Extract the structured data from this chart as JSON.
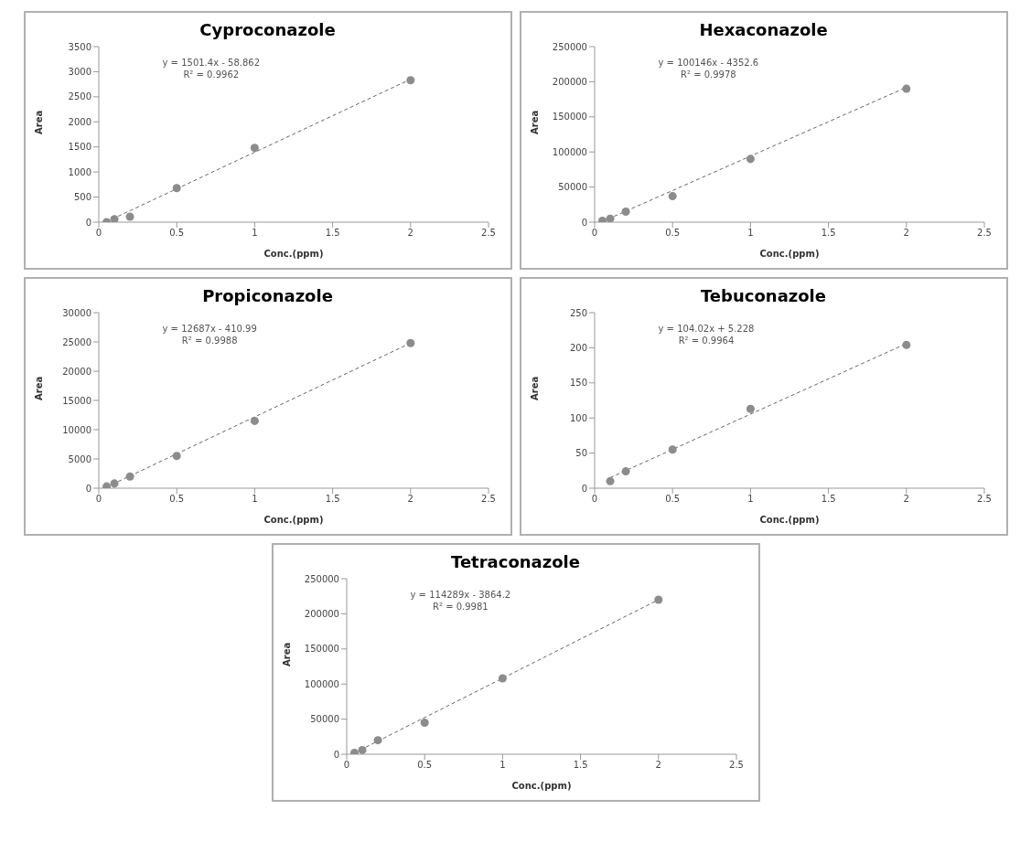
{
  "chart_data": [
    {
      "type": "scatter",
      "title": "Cyproconazole",
      "xlabel": "Conc.(ppm)",
      "ylabel": "Area",
      "xlim": [
        0,
        2.5
      ],
      "xticks": [
        0,
        0.5,
        1,
        1.5,
        2,
        2.5
      ],
      "ylim": [
        0,
        3500
      ],
      "yticks": [
        0,
        500,
        1000,
        1500,
        2000,
        2500,
        3000,
        3500
      ],
      "marker": "circle",
      "annotations": [
        "y = 1501.4x - 58.862",
        "R² = 0.9962"
      ],
      "series": [
        {
          "color": "#8c8c8c",
          "x": [
            0.05,
            0.1,
            0.2,
            0.5,
            1,
            2
          ],
          "values": [
            0,
            60,
            110,
            680,
            1480,
            2830
          ]
        },
        {
          "type": "line",
          "color": "#666666",
          "line_style": "dashed",
          "marker": "none",
          "x": [
            0.05,
            2
          ],
          "values": [
            10,
            2850
          ]
        }
      ]
    },
    {
      "type": "scatter",
      "title": "Hexaconazole",
      "xlabel": "Conc.(ppm)",
      "ylabel": "Area",
      "xlim": [
        0,
        2.5
      ],
      "xticks": [
        0,
        0.5,
        1,
        1.5,
        2,
        2.5
      ],
      "ylim": [
        0,
        250000
      ],
      "yticks": [
        0,
        50000,
        100000,
        150000,
        200000,
        250000
      ],
      "marker": "circle",
      "annotations": [
        "y = 100146x - 4352.6",
        "R² = 0.9978"
      ],
      "series": [
        {
          "color": "#8c8c8c",
          "x": [
            0.05,
            0.1,
            0.2,
            0.5,
            1,
            2
          ],
          "values": [
            2000,
            5000,
            15000,
            37000,
            90000,
            190000
          ]
        },
        {
          "type": "line",
          "color": "#666666",
          "line_style": "dashed",
          "marker": "none",
          "x": [
            0.05,
            2
          ],
          "values": [
            1000,
            192000
          ]
        }
      ]
    },
    {
      "type": "scatter",
      "title": "Propiconazole",
      "xlabel": "Conc.(ppm)",
      "ylabel": "Area",
      "xlim": [
        0,
        2.5
      ],
      "xticks": [
        0,
        0.5,
        1,
        1.5,
        2,
        2.5
      ],
      "ylim": [
        0,
        30000
      ],
      "yticks": [
        0,
        5000,
        10000,
        15000,
        20000,
        25000,
        30000
      ],
      "marker": "circle",
      "annotations": [
        "y = 12687x - 410.99",
        "R² = 0.9988"
      ],
      "series": [
        {
          "color": "#8c8c8c",
          "x": [
            0.05,
            0.1,
            0.2,
            0.5,
            1,
            2
          ],
          "values": [
            300,
            800,
            2000,
            5500,
            11500,
            24800
          ]
        },
        {
          "type": "line",
          "color": "#666666",
          "line_style": "dashed",
          "marker": "none",
          "x": [
            0.05,
            2
          ],
          "values": [
            200,
            24800
          ]
        }
      ]
    },
    {
      "type": "scatter",
      "title": "Tebuconazole",
      "xlabel": "Conc.(ppm)",
      "ylabel": "Area",
      "xlim": [
        0,
        2.5
      ],
      "xticks": [
        0,
        0.5,
        1,
        1.5,
        2,
        2.5
      ],
      "ylim": [
        0,
        250
      ],
      "yticks": [
        0,
        50,
        100,
        150,
        200,
        250
      ],
      "marker": "circle",
      "annotations": [
        "y = 104.02x + 5.228",
        "R² = 0.9964"
      ],
      "series": [
        {
          "color": "#8c8c8c",
          "x": [
            0.1,
            0.2,
            0.5,
            1,
            2
          ],
          "values": [
            10,
            24,
            55,
            113,
            204
          ]
        },
        {
          "type": "line",
          "color": "#666666",
          "line_style": "dashed",
          "marker": "none",
          "x": [
            0.1,
            2
          ],
          "values": [
            15,
            206
          ]
        }
      ]
    },
    {
      "type": "scatter",
      "title": "Tetraconazole",
      "xlabel": "Conc.(ppm)",
      "ylabel": "Area",
      "xlim": [
        0,
        2.5
      ],
      "xticks": [
        0,
        0.5,
        1,
        1.5,
        2,
        2.5
      ],
      "ylim": [
        0,
        250000
      ],
      "yticks": [
        0,
        50000,
        100000,
        150000,
        200000,
        250000
      ],
      "marker": "circle",
      "annotations": [
        "y = 114289x - 3864.2",
        "R² = 0.9981"
      ],
      "series": [
        {
          "color": "#8c8c8c",
          "x": [
            0.05,
            0.1,
            0.2,
            0.5,
            1,
            2
          ],
          "values": [
            2000,
            6000,
            20000,
            45000,
            108000,
            220000
          ]
        },
        {
          "type": "line",
          "color": "#666666",
          "line_style": "dashed",
          "marker": "none",
          "x": [
            0.05,
            2
          ],
          "values": [
            2000,
            220000
          ]
        }
      ]
    }
  ]
}
